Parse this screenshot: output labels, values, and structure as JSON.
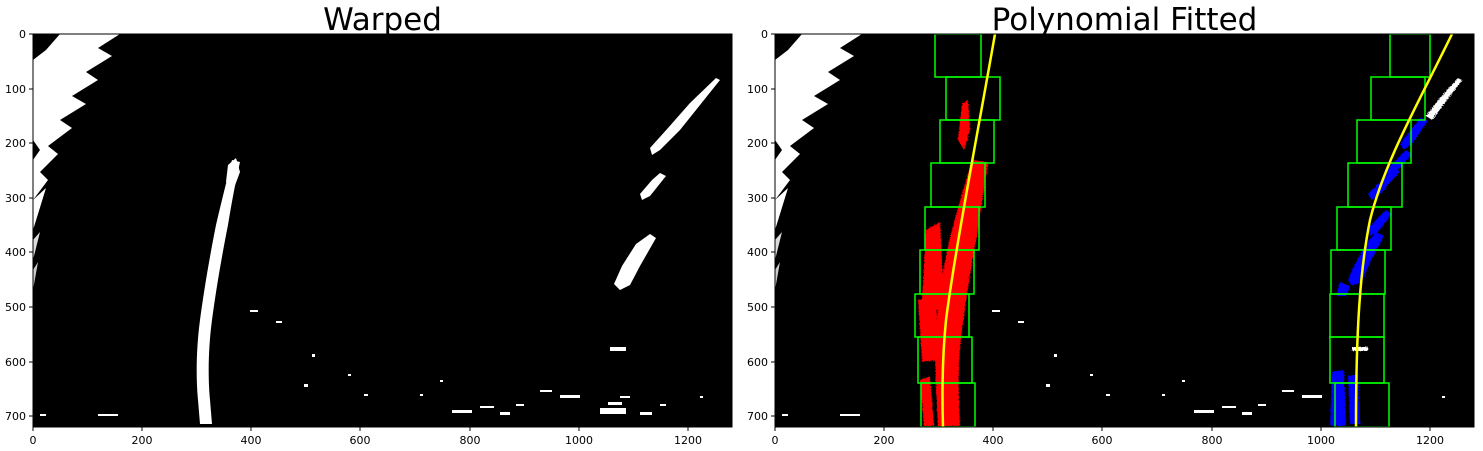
{
  "figure": {
    "panels": [
      {
        "id": "left",
        "title": "Warped",
        "xticks": [
          "0",
          "200",
          "400",
          "600",
          "800",
          "1000",
          "1200"
        ],
        "yticks": [
          "0",
          "100",
          "200",
          "300",
          "400",
          "500",
          "600",
          "700"
        ]
      },
      {
        "id": "right",
        "title": "Polynomial Fitted",
        "xticks": [
          "0",
          "200",
          "400",
          "600",
          "800",
          "1000",
          "1200"
        ],
        "yticks": [
          "0",
          "100",
          "200",
          "300",
          "400",
          "500",
          "600",
          "700"
        ]
      }
    ],
    "colors": {
      "background": "#000000",
      "lane_pixels": "#ffffff",
      "left_lane_fit_pixels": "#ff0000",
      "right_lane_fit_pixels": "#0000ff",
      "search_windows": "#00ff00",
      "fit_curve": "#ffff00"
    }
  }
}
